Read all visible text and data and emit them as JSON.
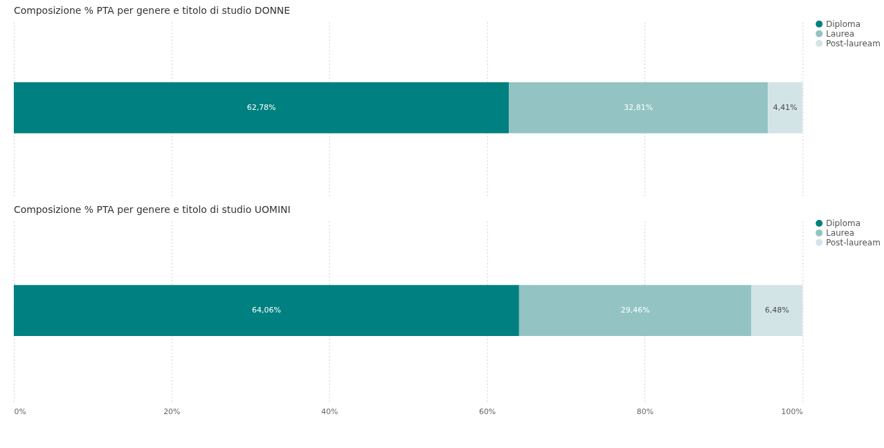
{
  "chart_data": [
    {
      "type": "bar",
      "title": "Composizione % PTA per genere e titolo di studio DONNE",
      "orientation": "horizontal",
      "stacked": true,
      "categories": [
        null
      ],
      "series": [
        {
          "name": "Diploma",
          "color": "#008080",
          "values": [
            62.78
          ],
          "value_labels": [
            "62,78%"
          ]
        },
        {
          "name": "Laurea",
          "color": "#93c3c3",
          "values": [
            32.81
          ],
          "value_labels": [
            "32,81%"
          ]
        },
        {
          "name": "Post-lauream",
          "color": "#d3e4e6",
          "values": [
            4.41
          ],
          "value_labels": [
            "4,41%"
          ]
        }
      ],
      "xlim": [
        0,
        100
      ],
      "xticks": [
        {
          "value": 0,
          "label": null
        },
        {
          "value": 20,
          "label": null
        },
        {
          "value": 40,
          "label": null
        },
        {
          "value": 60,
          "label": null
        },
        {
          "value": 80,
          "label": null
        },
        {
          "value": 100,
          "label": null
        }
      ],
      "grid": "x",
      "legend": "right",
      "tick_labels": false
    },
    {
      "type": "bar",
      "title": "Composizione % PTA per genere e titolo di studio UOMINI",
      "orientation": "horizontal",
      "stacked": true,
      "categories": [
        null
      ],
      "series": [
        {
          "name": "Diploma",
          "color": "#008080",
          "values": [
            64.06
          ],
          "value_labels": [
            "64,06%"
          ]
        },
        {
          "name": "Laurea",
          "color": "#93c3c3",
          "values": [
            29.46
          ],
          "value_labels": [
            "29,46%"
          ]
        },
        {
          "name": "Post-lauream",
          "color": "#d3e4e6",
          "values": [
            6.48
          ],
          "value_labels": [
            "6,48%"
          ]
        }
      ],
      "xlim": [
        0,
        100
      ],
      "xticks": [
        {
          "value": 0,
          "label": "0%"
        },
        {
          "value": 20,
          "label": "20%"
        },
        {
          "value": 40,
          "label": "40%"
        },
        {
          "value": 60,
          "label": "60%"
        },
        {
          "value": 80,
          "label": "80%"
        },
        {
          "value": 100,
          "label": "100%"
        }
      ],
      "grid": "x",
      "legend": "right",
      "tick_labels": "x"
    }
  ]
}
